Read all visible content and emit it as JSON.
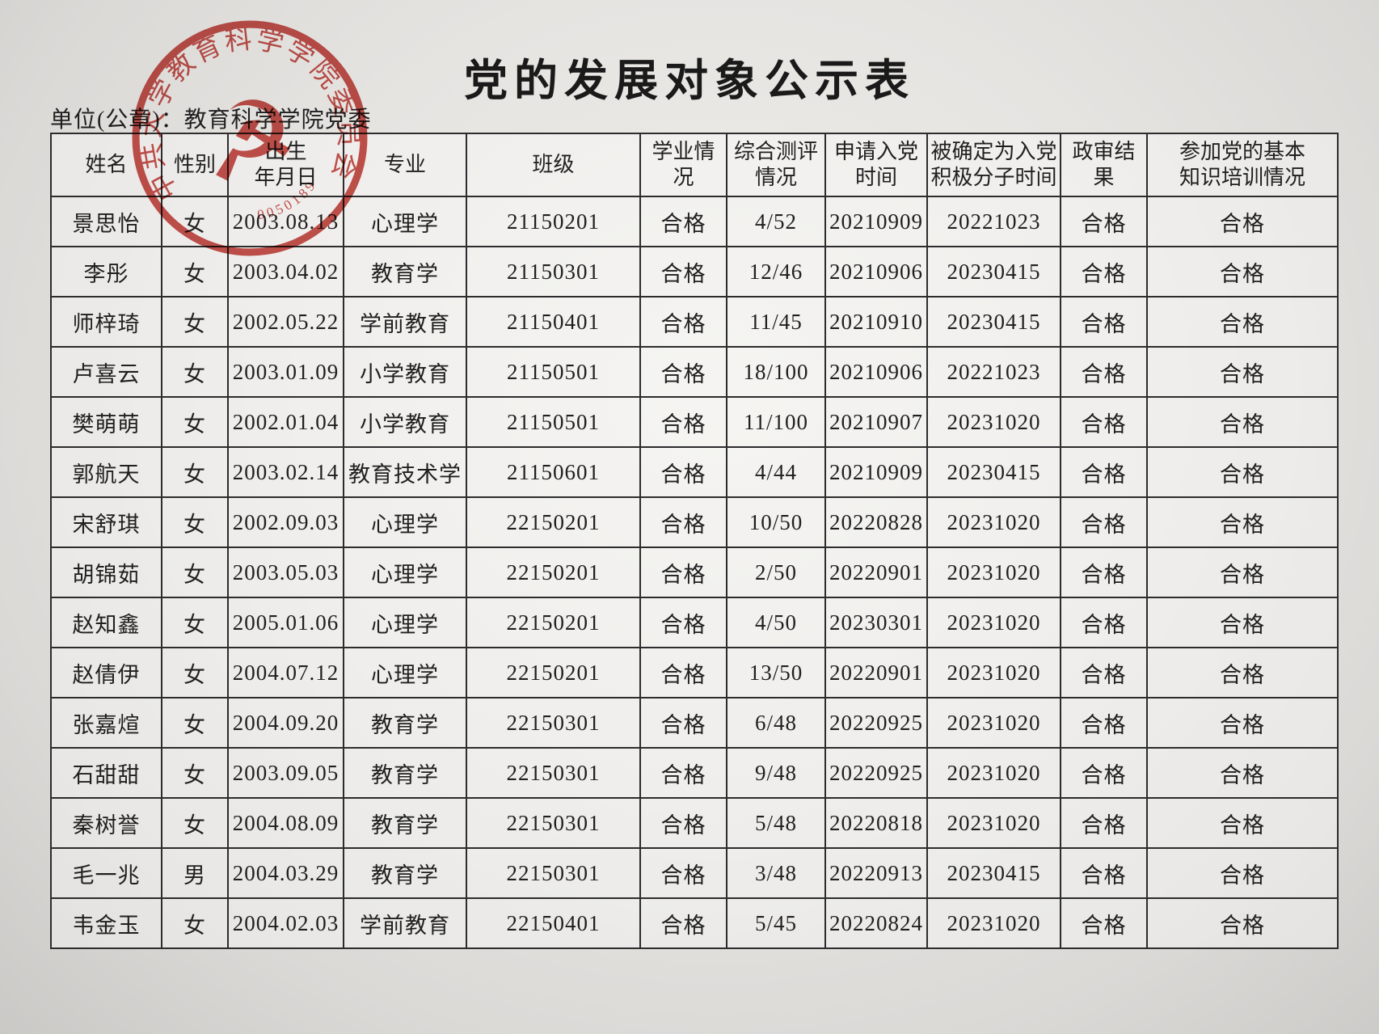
{
  "title": "党的发展对象公示表",
  "unit_line": "单位(公章)：教育科学学院党委",
  "seal": {
    "arc_text": "中共大学教育科学学院委员会",
    "serial": "0050189",
    "emblem_glyph": "☭",
    "color": "#c23b35"
  },
  "table": {
    "headers": [
      "姓名",
      "性别",
      "出生\n年月日",
      "专业",
      "班级",
      "学业情况",
      "综合测评\n情况",
      "申请入党\n时间",
      "被确定为入党\n积极分子时间",
      "政审结果",
      "参加党的基本\n知识培训情况"
    ],
    "rows": [
      [
        "景思怡",
        "女",
        "2003.08.13",
        "心理学",
        "21150201",
        "合格",
        "4/52",
        "20210909",
        "20221023",
        "合格",
        "合格"
      ],
      [
        "李彤",
        "女",
        "2003.04.02",
        "教育学",
        "21150301",
        "合格",
        "12/46",
        "20210906",
        "20230415",
        "合格",
        "合格"
      ],
      [
        "师梓琦",
        "女",
        "2002.05.22",
        "学前教育",
        "21150401",
        "合格",
        "11/45",
        "20210910",
        "20230415",
        "合格",
        "合格"
      ],
      [
        "卢喜云",
        "女",
        "2003.01.09",
        "小学教育",
        "21150501",
        "合格",
        "18/100",
        "20210906",
        "20221023",
        "合格",
        "合格"
      ],
      [
        "樊萌萌",
        "女",
        "2002.01.04",
        "小学教育",
        "21150501",
        "合格",
        "11/100",
        "20210907",
        "20231020",
        "合格",
        "合格"
      ],
      [
        "郭航天",
        "女",
        "2003.02.14",
        "教育技术学",
        "21150601",
        "合格",
        "4/44",
        "20210909",
        "20230415",
        "合格",
        "合格"
      ],
      [
        "宋舒琪",
        "女",
        "2002.09.03",
        "心理学",
        "22150201",
        "合格",
        "10/50",
        "20220828",
        "20231020",
        "合格",
        "合格"
      ],
      [
        "胡锦茹",
        "女",
        "2003.05.03",
        "心理学",
        "22150201",
        "合格",
        "2/50",
        "20220901",
        "20231020",
        "合格",
        "合格"
      ],
      [
        "赵知鑫",
        "女",
        "2005.01.06",
        "心理学",
        "22150201",
        "合格",
        "4/50",
        "20230301",
        "20231020",
        "合格",
        "合格"
      ],
      [
        "赵倩伊",
        "女",
        "2004.07.12",
        "心理学",
        "22150201",
        "合格",
        "13/50",
        "20220901",
        "20231020",
        "合格",
        "合格"
      ],
      [
        "张嘉煊",
        "女",
        "2004.09.20",
        "教育学",
        "22150301",
        "合格",
        "6/48",
        "20220925",
        "20231020",
        "合格",
        "合格"
      ],
      [
        "石甜甜",
        "女",
        "2003.09.05",
        "教育学",
        "22150301",
        "合格",
        "9/48",
        "20220925",
        "20231020",
        "合格",
        "合格"
      ],
      [
        "秦树誉",
        "女",
        "2004.08.09",
        "教育学",
        "22150301",
        "合格",
        "5/48",
        "20220818",
        "20231020",
        "合格",
        "合格"
      ],
      [
        "毛一兆",
        "男",
        "2004.03.29",
        "教育学",
        "22150301",
        "合格",
        "3/48",
        "20220913",
        "20230415",
        "合格",
        "合格"
      ],
      [
        "韦金玉",
        "女",
        "2004.02.03",
        "学前教育",
        "22150401",
        "合格",
        "5/45",
        "20220824",
        "20231020",
        "合格",
        "合格"
      ]
    ]
  }
}
